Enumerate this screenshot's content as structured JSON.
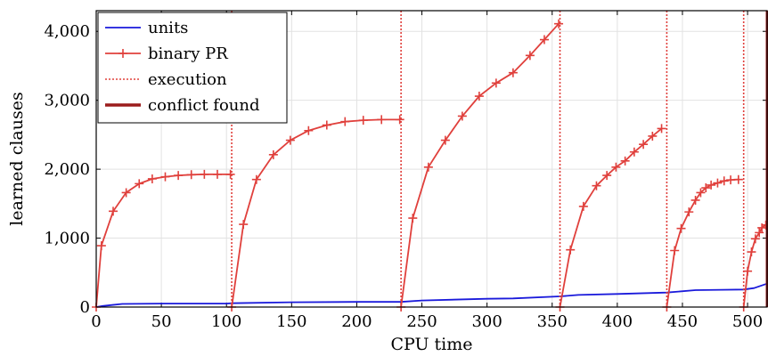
{
  "chart_data": {
    "type": "line",
    "xlabel": "CPU time",
    "ylabel": "learned clauses",
    "xlim": [
      0,
      515
    ],
    "ylim": [
      0,
      4300
    ],
    "x_ticks": [
      0,
      50,
      100,
      150,
      200,
      250,
      300,
      350,
      400,
      450,
      500
    ],
    "y_ticks": [
      0,
      1000,
      2000,
      3000,
      4000
    ],
    "x_tick_labels": [
      "0",
      "50",
      "100",
      "150",
      "200",
      "250",
      "300",
      "350",
      "400",
      "450",
      "500"
    ],
    "y_tick_labels": [
      "0",
      "1,000",
      "2,000",
      "3,000",
      "4,000"
    ],
    "grid": true,
    "legend_position": "top-left",
    "series": [
      {
        "name": "units",
        "color": "#1a1adb",
        "style": "line",
        "points": [
          [
            0,
            0
          ],
          [
            5,
            15
          ],
          [
            20,
            45
          ],
          [
            50,
            50
          ],
          [
            100,
            50
          ],
          [
            104,
            55
          ],
          [
            150,
            70
          ],
          [
            200,
            75
          ],
          [
            234,
            75
          ],
          [
            250,
            95
          ],
          [
            300,
            120
          ],
          [
            320,
            125
          ],
          [
            356,
            155
          ],
          [
            370,
            175
          ],
          [
            400,
            190
          ],
          [
            438,
            210
          ],
          [
            460,
            245
          ],
          [
            480,
            250
          ],
          [
            497,
            255
          ],
          [
            505,
            275
          ],
          [
            515,
            340
          ]
        ]
      },
      {
        "name": "binary PR",
        "color": "#e0403c",
        "style": "line-plus",
        "points": [
          [
            0,
            0
          ],
          [
            4,
            890
          ],
          [
            13,
            1390
          ],
          [
            23,
            1660
          ],
          [
            33,
            1790
          ],
          [
            43,
            1860
          ],
          [
            53,
            1890
          ],
          [
            63,
            1910
          ],
          [
            73,
            1920
          ],
          [
            83,
            1925
          ],
          [
            93,
            1925
          ],
          [
            103,
            1925
          ],
          [
            null,
            null
          ],
          [
            104,
            0
          ],
          [
            113,
            1200
          ],
          [
            123,
            1850
          ],
          [
            136,
            2210
          ],
          [
            149,
            2420
          ],
          [
            163,
            2560
          ],
          [
            177,
            2640
          ],
          [
            191,
            2690
          ],
          [
            205,
            2710
          ],
          [
            219,
            2720
          ],
          [
            233,
            2720
          ],
          [
            null,
            null
          ],
          [
            234,
            0
          ],
          [
            243,
            1290
          ],
          [
            255,
            2030
          ],
          [
            268,
            2420
          ],
          [
            281,
            2770
          ],
          [
            294,
            3060
          ],
          [
            307,
            3250
          ],
          [
            320,
            3400
          ],
          [
            333,
            3650
          ],
          [
            344,
            3880
          ],
          [
            355,
            4110
          ],
          [
            null,
            null
          ],
          [
            356,
            0
          ],
          [
            364,
            830
          ],
          [
            374,
            1460
          ],
          [
            384,
            1760
          ],
          [
            392,
            1910
          ],
          [
            399,
            2030
          ],
          [
            406,
            2120
          ],
          [
            413,
            2250
          ],
          [
            420,
            2360
          ],
          [
            427,
            2480
          ],
          [
            434,
            2590
          ],
          [
            null,
            null
          ],
          [
            438,
            0
          ],
          [
            444,
            820
          ],
          [
            449,
            1140
          ],
          [
            455,
            1380
          ],
          [
            460,
            1550
          ],
          [
            464,
            1660
          ],
          [
            468,
            1730
          ],
          [
            472,
            1770
          ],
          [
            477,
            1800
          ],
          [
            482,
            1830
          ],
          [
            487,
            1845
          ],
          [
            493,
            1850
          ],
          [
            null,
            null
          ],
          [
            497,
            0
          ],
          [
            500,
            520
          ],
          [
            503,
            800
          ],
          [
            506,
            990
          ],
          [
            509,
            1080
          ],
          [
            511,
            1150
          ],
          [
            514,
            1190
          ]
        ]
      },
      {
        "name": "execution",
        "color": "#e0403c",
        "style": "dotted",
        "x_positions": [
          104,
          234,
          356,
          438,
          497
        ]
      },
      {
        "name": "conflict found",
        "color": "#9b1c1c",
        "style": "thick-line",
        "x_positions": [
          515
        ]
      }
    ]
  }
}
